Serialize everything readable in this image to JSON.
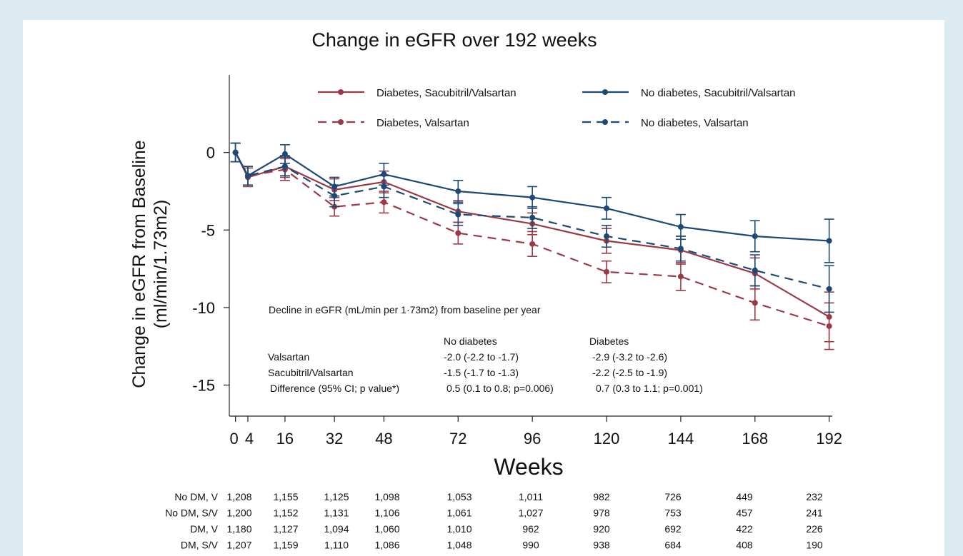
{
  "chart_data": {
    "type": "line",
    "title": "Change in eGFR over 192 weeks",
    "xlabel": "Weeks",
    "ylabel_lines": [
      "Change in eGFR from Baseline",
      "(ml/min/1.73m2)"
    ],
    "x": [
      0,
      4,
      16,
      32,
      48,
      72,
      96,
      120,
      144,
      168,
      192
    ],
    "x_ticks": [
      "0",
      "4",
      "16",
      "32",
      "48",
      "72",
      "96",
      "120",
      "144",
      "168",
      "192"
    ],
    "y_ticks": [
      0,
      -5,
      -10,
      -15
    ],
    "ylim": [
      -17,
      5
    ],
    "xlim": [
      -2,
      193
    ],
    "grid": false,
    "legend_position": "top",
    "series": [
      {
        "name": "Diabetes, Sacubitril/Valsartan",
        "color": "#9b3a47",
        "dash": false,
        "y": [
          0.0,
          -1.6,
          -0.9,
          -2.4,
          -1.9,
          -3.8,
          -4.6,
          -5.7,
          -6.3,
          -7.8,
          -10.6
        ],
        "err": [
          0.6,
          0.6,
          0.7,
          0.7,
          0.7,
          0.7,
          0.7,
          0.8,
          0.9,
          1.0,
          1.6
        ]
      },
      {
        "name": "Diabetes, Valsartan",
        "color": "#9b3a47",
        "dash": true,
        "y": [
          0.0,
          -1.5,
          -1.1,
          -3.5,
          -3.2,
          -5.2,
          -5.9,
          -7.7,
          -8.0,
          -9.7,
          -11.2
        ],
        "err": [
          0.6,
          0.6,
          0.7,
          0.6,
          0.7,
          0.7,
          0.8,
          0.7,
          0.9,
          1.1,
          1.5
        ]
      },
      {
        "name": "No diabetes, Sacubitril/Valsartan",
        "color": "#1d4a75",
        "dash": false,
        "y": [
          0.0,
          -1.5,
          -0.1,
          -2.2,
          -1.4,
          -2.5,
          -2.9,
          -3.6,
          -4.8,
          -5.4,
          -5.7
        ],
        "err": [
          0.6,
          0.6,
          0.6,
          0.6,
          0.7,
          0.7,
          0.7,
          0.7,
          0.8,
          1.0,
          1.4
        ]
      },
      {
        "name": "No diabetes, Valsartan",
        "color": "#1d4a75",
        "dash": true,
        "y": [
          0.0,
          -1.5,
          -0.9,
          -2.8,
          -2.2,
          -4.0,
          -4.2,
          -5.4,
          -6.2,
          -7.6,
          -8.8
        ],
        "err": [
          0.6,
          0.6,
          0.6,
          0.7,
          0.7,
          0.7,
          0.7,
          0.7,
          0.8,
          1.0,
          1.5
        ]
      }
    ],
    "annotation": {
      "heading": "Decline in eGFR (mL/min per 1·73m2) from baseline per year",
      "columns": [
        "No diabetes",
        "Diabetes"
      ],
      "rows": [
        {
          "label": "Valsartan",
          "no_diabetes": "-2.0 (-2.2 to -1.7)",
          "diabetes": "-2.9 (-3.2 to -2.6)"
        },
        {
          "label": "Sacubitril/Valsartan",
          "no_diabetes": "-1.5 (-1.7 to -1.3)",
          "diabetes": "-2.2 (-2.5 to -1.9)"
        },
        {
          "label": "Difference (95% CI; p value*)",
          "no_diabetes": "0.5 (0.1 to 0.8; p=0.006)",
          "diabetes": "0.7 (0.3 to 1.1; p=0.001)"
        }
      ]
    },
    "risk_table": [
      {
        "label": "No DM, V",
        "values": [
          "1,208",
          "1,155",
          "1,125",
          "1,098",
          "1,053",
          "1,011",
          "982",
          "726",
          "449",
          "232"
        ]
      },
      {
        "label": "No DM, S/V",
        "values": [
          "1,200",
          "1,152",
          "1,131",
          "1,106",
          "1,061",
          "1,027",
          "978",
          "753",
          "457",
          "241"
        ]
      },
      {
        "label": "DM, V",
        "values": [
          "1,180",
          "1,127",
          "1,094",
          "1,060",
          "1,010",
          "962",
          "920",
          "692",
          "422",
          "226"
        ]
      },
      {
        "label": "DM, S/V",
        "values": [
          "1,207",
          "1,159",
          "1,110",
          "1,086",
          "1,048",
          "990",
          "938",
          "684",
          "408",
          "190"
        ]
      }
    ]
  }
}
